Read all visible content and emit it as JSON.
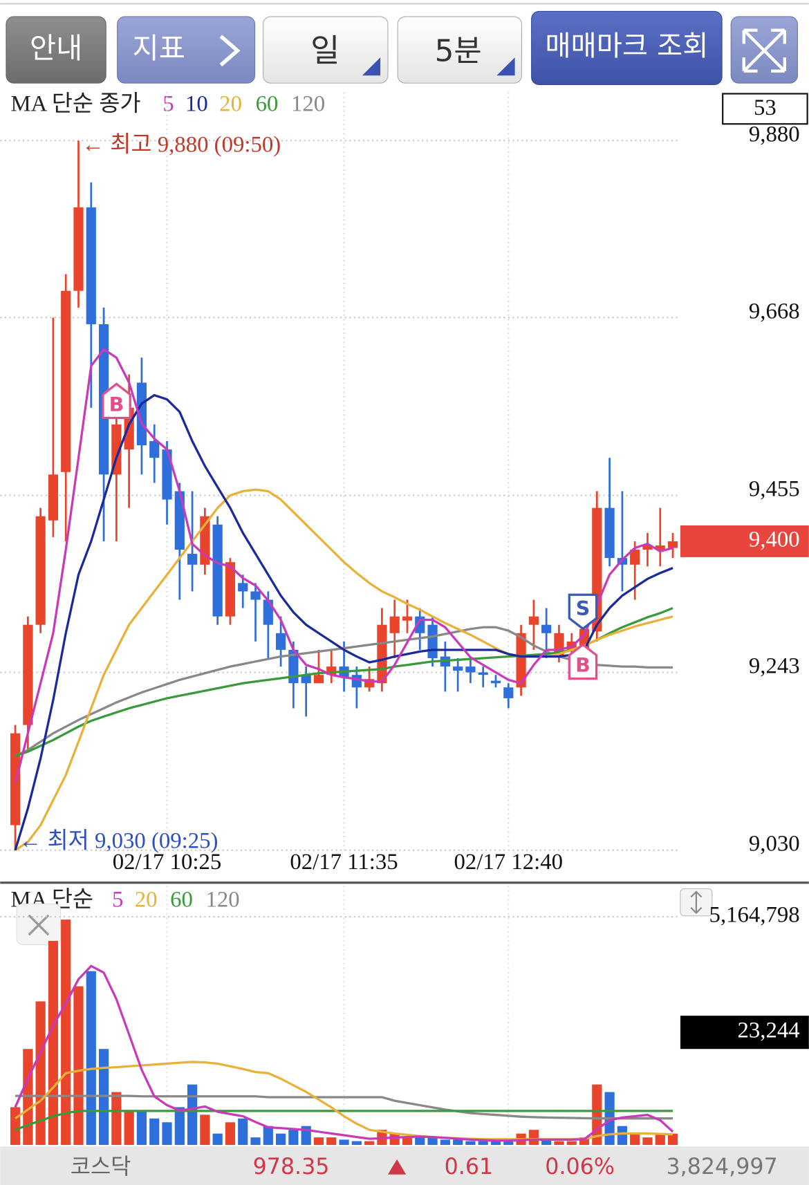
{
  "buttons": [
    "안내",
    "지표",
    "일",
    "5분",
    "매매마크 조회"
  ],
  "chart_data": [
    {
      "type": "candlestick",
      "title": "MA 단순 종가",
      "count_label": "53",
      "categories": [
        null,
        null,
        null,
        null,
        null,
        null,
        null,
        null,
        null,
        null,
        null,
        null,
        "02/17 10:25",
        null,
        null,
        null,
        null,
        null,
        null,
        null,
        null,
        null,
        null,
        null,
        null,
        null,
        "02/17 11:35",
        null,
        null,
        null,
        null,
        null,
        null,
        null,
        null,
        null,
        null,
        null,
        null,
        "02/17 12:40",
        null,
        null,
        null,
        null,
        null,
        null,
        null,
        null,
        null,
        null,
        null,
        null,
        null
      ],
      "open": [
        9060,
        9180,
        9300,
        9425,
        9483,
        9700,
        9800,
        9660,
        9480,
        9510,
        9590,
        9520,
        9510,
        9460,
        9385,
        9372,
        9420,
        9310,
        9350,
        9340,
        9330,
        9290,
        9270,
        9240,
        9230,
        9240,
        9250,
        9240,
        9225,
        9230,
        9290,
        9305,
        9310,
        9300,
        9262,
        9250,
        9250,
        9243,
        9233,
        9225,
        9225,
        9300,
        9300,
        9262,
        9270,
        9270,
        9292,
        9440,
        9380,
        9372,
        9390,
        9390,
        9392
      ],
      "high": [
        9180,
        9310,
        9440,
        9668,
        9720,
        9880,
        9830,
        9680,
        9560,
        9600,
        9620,
        9540,
        9520,
        9470,
        9460,
        9440,
        9430,
        9380,
        9360,
        9350,
        9340,
        9310,
        9280,
        9250,
        9270,
        9270,
        9280,
        9250,
        9250,
        9320,
        9330,
        9330,
        9320,
        9310,
        9280,
        9260,
        9260,
        9250,
        9240,
        9230,
        9300,
        9330,
        9320,
        9300,
        9290,
        9310,
        9460,
        9500,
        9460,
        9400,
        9410,
        9440,
        9410
      ],
      "low": [
        9030,
        9150,
        9290,
        9405,
        9400,
        9680,
        9560,
        9400,
        9400,
        9440,
        9480,
        9470,
        9420,
        9330,
        9340,
        9360,
        9300,
        9300,
        9320,
        9280,
        9260,
        9250,
        9200,
        9190,
        9230,
        9230,
        9220,
        9200,
        9220,
        9220,
        9260,
        9290,
        9270,
        9250,
        9220,
        9220,
        9230,
        9225,
        9225,
        9200,
        9215,
        9270,
        9260,
        9255,
        9260,
        9260,
        9280,
        9370,
        9340,
        9330,
        9370,
        9370,
        9380
      ],
      "close": [
        9170,
        9300,
        9430,
        9480,
        9700,
        9800,
        9660,
        9480,
        9540,
        9560,
        9515,
        9500,
        9450,
        9390,
        9372,
        9430,
        9310,
        9375,
        9340,
        9330,
        9300,
        9270,
        9230,
        9230,
        9240,
        9250,
        9237,
        9225,
        9235,
        9300,
        9310,
        9310,
        9290,
        9260,
        9250,
        9245,
        9243,
        9240,
        9230,
        9212,
        9290,
        9310,
        9290,
        9290,
        9280,
        9295,
        9440,
        9380,
        9372,
        9390,
        9395,
        9395,
        9400
      ],
      "up_color": "#e8452c",
      "down_color": "#2f6fdb",
      "series": [
        {
          "name": "5",
          "color": "#c83ab8",
          "values": [
            9110,
            9170,
            9230,
            9290,
            9390,
            9500,
            9610,
            9630,
            9620,
            9590,
            9541,
            9523,
            9510,
            9460,
            9397,
            9383,
            9374,
            9370,
            9356,
            9347,
            9329,
            9306,
            9270,
            9252,
            9247,
            9240,
            9237,
            9235,
            9232,
            9232,
            9252,
            9279,
            9306,
            9306,
            9297,
            9279,
            9261,
            9252,
            9243,
            9234,
            9230,
            9252,
            9270,
            9270,
            9274,
            9288,
            9324,
            9360,
            9378,
            9392,
            9397,
            9388,
            9392
          ]
        },
        {
          "name": "10",
          "color": "#1a2a9a",
          "values": [
            9030,
            9080,
            9140,
            9210,
            9290,
            9360,
            9400,
            9450,
            9500,
            9540,
            9565,
            9575,
            9570,
            9555,
            9520,
            9490,
            9465,
            9440,
            9410,
            9385,
            9360,
            9335,
            9315,
            9300,
            9290,
            9280,
            9270,
            9262,
            9255,
            9258,
            9262,
            9265,
            9268,
            9270,
            9270,
            9270,
            9270,
            9270,
            9270,
            9265,
            9262,
            9262,
            9262,
            9262,
            9264,
            9270,
            9300,
            9320,
            9335,
            9345,
            9355,
            9362,
            9368
          ]
        },
        {
          "name": "20",
          "color": "#e8b23a",
          "values": [
            9030,
            9040,
            9060,
            9090,
            9120,
            9160,
            9200,
            9240,
            9270,
            9300,
            9320,
            9340,
            9360,
            9380,
            9400,
            9420,
            9440,
            9455,
            9460,
            9462,
            9460,
            9450,
            9435,
            9420,
            9405,
            9390,
            9375,
            9362,
            9350,
            9340,
            9333,
            9325,
            9318,
            9310,
            9302,
            9295,
            9288,
            9280,
            9272,
            9265,
            9262,
            9262,
            9262,
            9265,
            9270,
            9275,
            9282,
            9288,
            9293,
            9298,
            9302,
            9306,
            9310
          ]
        },
        {
          "name": "60",
          "color": "#3a9a3a",
          "values": [
            9143,
            9148,
            9155,
            9162,
            9170,
            9178,
            9185,
            9190,
            9195,
            9200,
            9204,
            9208,
            9212,
            9215,
            9218,
            9221,
            9224,
            9227,
            9230,
            9232,
            9234,
            9236,
            9238,
            9240,
            9242,
            9243,
            9244,
            9245,
            9246,
            9247,
            9250,
            9252,
            9254,
            9256,
            9257,
            9258,
            9259,
            9260,
            9261,
            9262,
            9263,
            9264,
            9265,
            9267,
            9270,
            9275,
            9282,
            9290,
            9297,
            9303,
            9309,
            9314,
            9320
          ]
        },
        {
          "name": "120",
          "color": "#888888",
          "values": [
            9143,
            9150,
            9160,
            9170,
            9178,
            9186,
            9193,
            9200,
            9207,
            9213,
            9219,
            9224,
            9229,
            9234,
            9238,
            9242,
            9246,
            9250,
            9253,
            9256,
            9259,
            9262,
            9264,
            9266,
            9268,
            9270,
            9272,
            9274,
            9276,
            9278,
            9280,
            9282,
            9284,
            9286,
            9289,
            9292,
            9295,
            9297,
            9297,
            9293,
            9285,
            9275,
            9268,
            9262,
            9258,
            9255,
            9252,
            9251,
            9250,
            9250,
            9249,
            9249,
            9249
          ]
        }
      ],
      "ylim": [
        9030,
        9880
      ],
      "yticks": [
        {
          "value": 9880,
          "label": "9,880"
        },
        {
          "value": 9668,
          "label": "9,668"
        },
        {
          "value": 9455,
          "label": "9,455"
        },
        {
          "value": 9243,
          "label": "9,243"
        },
        {
          "value": 9030,
          "label": "9,030"
        }
      ],
      "current": {
        "value": 9400,
        "label": "9,400"
      },
      "annotations": [
        "← 최고 9,880 (09:50)",
        "← 최저 9,030 (09:25)"
      ],
      "markers": [
        "B",
        "S",
        "B"
      ],
      "grid": true
    },
    {
      "type": "bar",
      "title": "MA 단순",
      "values": [
        855000,
        2172000,
        3249000,
        4618000,
        5100000,
        3591000,
        3933000,
        2172000,
        1197000,
        770000,
        770000,
        599000,
        513000,
        855000,
        1368000,
        684000,
        257000,
        513000,
        599000,
        171000,
        428000,
        257000,
        342000,
        428000,
        171000,
        171000,
        120000,
        86000,
        86000,
        342000,
        257000,
        171000,
        171000,
        171000,
        120000,
        120000,
        86000,
        86000,
        86000,
        120000,
        257000,
        342000,
        120000,
        86000,
        86000,
        171000,
        1368000,
        1197000,
        428000,
        257000,
        171000,
        257000,
        257000
      ],
      "series": [
        {
          "name": "5",
          "color": "#c83ab8",
          "values": [
            855000,
            1500000,
            2100000,
            2700000,
            3200000,
            3750000,
            4050000,
            3900000,
            3300000,
            2500000,
            1700000,
            1100000,
            900000,
            780000,
            820000,
            870000,
            750000,
            700000,
            650000,
            520000,
            400000,
            380000,
            360000,
            340000,
            300000,
            260000,
            220000,
            180000,
            140000,
            150000,
            170000,
            180000,
            190000,
            180000,
            160000,
            140000,
            120000,
            110000,
            100000,
            100000,
            110000,
            120000,
            120000,
            120000,
            120000,
            130000,
            350000,
            560000,
            620000,
            650000,
            680000,
            560000,
            300000
          ]
        },
        {
          "name": "20",
          "color": "#e8b23a",
          "values": [
            600000,
            800000,
            1000000,
            1300000,
            1625000,
            1680000,
            1720000,
            1744000,
            1760000,
            1780000,
            1800000,
            1820000,
            1840000,
            1860000,
            1880000,
            1870000,
            1840000,
            1780000,
            1720000,
            1650000,
            1625000,
            1500000,
            1350000,
            1200000,
            1026000,
            850000,
            650000,
            480000,
            342000,
            300000,
            260000,
            230000,
            200000,
            180000,
            160000,
            150000,
            140000,
            130000,
            130000,
            130000,
            130000,
            130000,
            130000,
            130000,
            130000,
            140000,
            200000,
            240000,
            260000,
            260000,
            260000,
            250000,
            240000
          ]
        },
        {
          "name": "60",
          "color": "#3a9a3a",
          "values": [
            342000,
            450000,
            550000,
            650000,
            720000,
            770000,
            770000,
            770000,
            770000,
            770000,
            770000,
            770000,
            770000,
            770000,
            770000,
            770000,
            770000,
            770000,
            770000,
            770000,
            770000,
            770000,
            770000,
            770000,
            770000,
            770000,
            770000,
            770000,
            770000,
            770000,
            770000,
            770000,
            770000,
            770000,
            770000,
            770000,
            770000,
            770000,
            770000,
            770000,
            770000,
            770000,
            770000,
            770000,
            770000,
            770000,
            770000,
            770000,
            770000,
            770000,
            770000,
            770000,
            770000
          ]
        },
        {
          "name": "120",
          "color": "#888888",
          "values": [
            1110000,
            1110000,
            1110000,
            1110000,
            1110000,
            1110000,
            1110000,
            1110000,
            1110000,
            1110000,
            1100000,
            1100000,
            1100000,
            1100000,
            1100000,
            1100000,
            1100000,
            1100000,
            1100000,
            1100000,
            1080000,
            1080000,
            1080000,
            1080000,
            1080000,
            1080000,
            1080000,
            1080000,
            1080000,
            1080000,
            1000000,
            950000,
            900000,
            850000,
            800000,
            760000,
            720000,
            700000,
            680000,
            660000,
            640000,
            630000,
            620000,
            615000,
            610000,
            605000,
            600000,
            600000,
            600000,
            600000,
            600000,
            600000,
            600000
          ]
        }
      ],
      "ylim": [
        0,
        5164798
      ],
      "yticks": [
        {
          "value": 5164798,
          "label": "5,164,798"
        }
      ],
      "current": {
        "value": 23244,
        "label": "23,244"
      },
      "grid": true
    }
  ],
  "ticker": {
    "name": "코스닥",
    "index": "978.35",
    "change": "0.61",
    "change_pct": "0.06%",
    "volume": "3,824,997"
  }
}
